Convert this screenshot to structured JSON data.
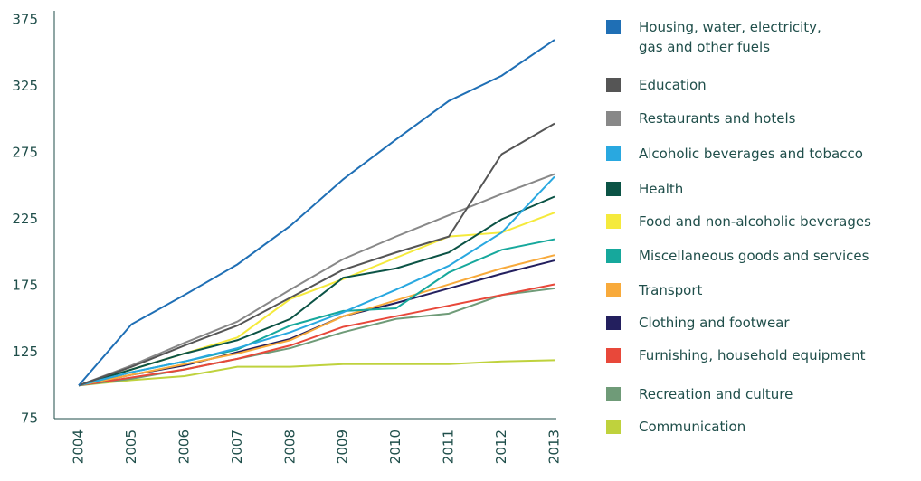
{
  "chart_data": {
    "type": "line",
    "categories": [
      "2004",
      "2005",
      "2006",
      "2007",
      "2008",
      "2009",
      "2010",
      "2011",
      "2012",
      "2013"
    ],
    "ylim": [
      75,
      375
    ],
    "yticks": [
      75,
      125,
      175,
      225,
      275,
      325,
      375
    ],
    "series": [
      {
        "name": "Housing, water, electricity,\ngas and other fuels",
        "color": "#1f6fb5",
        "values": [
          100,
          146,
          168,
          191,
          220,
          255,
          285,
          314,
          333,
          360
        ]
      },
      {
        "name": "Education",
        "color": "#555555",
        "values": [
          100,
          114,
          130,
          145,
          166,
          187,
          200,
          212,
          274,
          297
        ]
      },
      {
        "name": "Restaurants and hotels",
        "color": "#888888",
        "values": [
          100,
          115,
          132,
          148,
          172,
          195,
          212,
          228,
          244,
          259
        ]
      },
      {
        "name": "Alcoholic beverages and tobacco",
        "color": "#29a8e0",
        "values": [
          100,
          110,
          118,
          128,
          140,
          155,
          172,
          190,
          215,
          257
        ]
      },
      {
        "name": "Health",
        "color": "#0b5345",
        "values": [
          100,
          112,
          124,
          134,
          150,
          181,
          188,
          200,
          225,
          242
        ]
      },
      {
        "name": "Food and non-alcoholic beverages",
        "color": "#f5ea3c",
        "values": [
          100,
          112,
          124,
          136,
          165,
          180,
          196,
          212,
          215,
          230
        ]
      },
      {
        "name": "Miscellaneous goods and services",
        "color": "#16a89c",
        "values": [
          100,
          110,
          118,
          127,
          145,
          156,
          158,
          185,
          202,
          210
        ]
      },
      {
        "name": "Transport",
        "color": "#f8aa3b",
        "values": [
          100,
          108,
          116,
          124,
          134,
          152,
          164,
          176,
          188,
          198
        ]
      },
      {
        "name": "Clothing and footwear",
        "color": "#231f5e",
        "values": [
          100,
          108,
          115,
          125,
          135,
          152,
          162,
          173,
          184,
          194
        ]
      },
      {
        "name": "Furnishing, household equipment",
        "color": "#e8483a",
        "values": [
          100,
          106,
          112,
          120,
          130,
          144,
          152,
          160,
          168,
          176
        ]
      },
      {
        "name": "Recreation and culture",
        "color": "#6f9b78",
        "values": [
          100,
          105,
          112,
          120,
          128,
          140,
          150,
          154,
          168,
          173
        ]
      },
      {
        "name": "Communication",
        "color": "#bfd23d",
        "values": [
          100,
          104,
          107,
          114,
          114,
          116,
          116,
          116,
          118,
          119
        ]
      }
    ]
  }
}
